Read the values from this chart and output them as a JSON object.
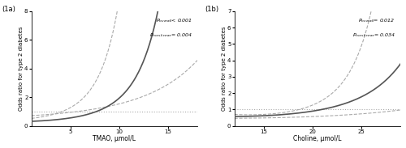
{
  "panel_a": {
    "label": "(1a)",
    "xlabel": "TMAO, μmol/L",
    "ylabel": "Odds ratio for type 2 diabetes",
    "xlim": [
      1,
      18
    ],
    "ylim": [
      0,
      8
    ],
    "yticks": [
      0,
      2,
      4,
      6,
      8
    ],
    "xticks": [
      5,
      10,
      15
    ],
    "p_overall": "P_overall< 0.001",
    "p_nonlinear": "P_non-linear= 0.004",
    "ref_x": 4.5,
    "curve_x_start": 1.0,
    "curve_x_end": 18.0
  },
  "panel_b": {
    "label": "(1b)",
    "xlabel": "Choline, μmol/L",
    "ylabel": "Odds ratio for type 2 diabetes",
    "xlim": [
      12,
      29
    ],
    "ylim": [
      0,
      7
    ],
    "yticks": [
      0,
      1,
      2,
      3,
      4,
      5,
      6,
      7
    ],
    "xticks": [
      15,
      20,
      25
    ],
    "p_overall": "P_overall= 0.012",
    "p_nonlinear": "P_non-linear= 0.034",
    "ref_x": 19.5,
    "curve_x_start": 12.0,
    "curve_x_end": 29.0
  },
  "line_color": "#555555",
  "ci_color": "#aaaaaa",
  "background_color": "#ffffff"
}
